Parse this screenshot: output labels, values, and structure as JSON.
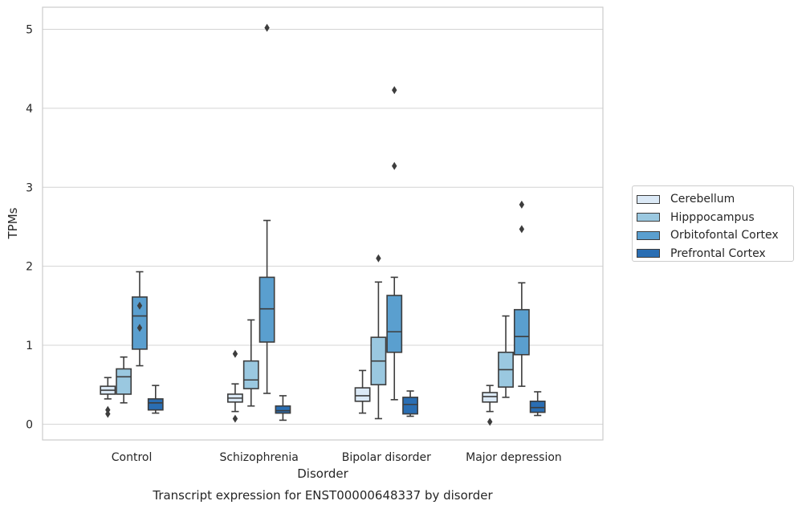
{
  "chart_data": {
    "type": "box",
    "title": "Transcript expression for ENST00000648337 by disorder",
    "xlabel": "Disorder",
    "ylabel": "TPMs",
    "ylim": [
      -0.2,
      5.28
    ],
    "yticks": [
      "0",
      "1",
      "2",
      "3",
      "4",
      "5"
    ],
    "categories": [
      "Control",
      "Schizophrenia",
      "Bipolar disorder",
      "Major depression"
    ],
    "grid": true,
    "legend_position": "right",
    "series": [
      {
        "name": "Cerebellum",
        "color": "#dbe9f6",
        "boxes": [
          {
            "whislo": 0.32,
            "q1": 0.38,
            "med": 0.43,
            "q3": 0.48,
            "whishi": 0.59,
            "fliers": [
              0.13,
              0.18
            ]
          },
          {
            "whislo": 0.16,
            "q1": 0.28,
            "med": 0.33,
            "q3": 0.38,
            "whishi": 0.51,
            "fliers": [
              0.89,
              0.07
            ]
          },
          {
            "whislo": 0.14,
            "q1": 0.29,
            "med": 0.36,
            "q3": 0.46,
            "whishi": 0.68,
            "fliers": []
          },
          {
            "whislo": 0.16,
            "q1": 0.28,
            "med": 0.35,
            "q3": 0.4,
            "whishi": 0.49,
            "fliers": [
              0.03
            ]
          }
        ]
      },
      {
        "name": "Hipppocampus",
        "color": "#9ac8e0",
        "boxes": [
          {
            "whislo": 0.27,
            "q1": 0.38,
            "med": 0.6,
            "q3": 0.7,
            "whishi": 0.85,
            "fliers": []
          },
          {
            "whislo": 0.23,
            "q1": 0.45,
            "med": 0.56,
            "q3": 0.8,
            "whishi": 1.32,
            "fliers": []
          },
          {
            "whislo": 0.07,
            "q1": 0.5,
            "med": 0.8,
            "q3": 1.1,
            "whishi": 1.8,
            "fliers": [
              2.1
            ]
          },
          {
            "whislo": 0.34,
            "q1": 0.47,
            "med": 0.69,
            "q3": 0.91,
            "whishi": 1.37,
            "fliers": []
          }
        ]
      },
      {
        "name": "Orbitofontal Cortex",
        "color": "#5a9fcf",
        "boxes": [
          {
            "whislo": 0.74,
            "q1": 0.95,
            "med": 1.37,
            "q3": 1.61,
            "whishi": 1.93,
            "fliers": [
              1.5,
              1.22
            ]
          },
          {
            "whislo": 0.39,
            "q1": 1.04,
            "med": 1.46,
            "q3": 1.86,
            "whishi": 2.58,
            "fliers": [
              5.02
            ]
          },
          {
            "whislo": 0.31,
            "q1": 0.91,
            "med": 1.17,
            "q3": 1.63,
            "whishi": 1.86,
            "fliers": [
              4.23,
              3.27
            ]
          },
          {
            "whislo": 0.48,
            "q1": 0.88,
            "med": 1.11,
            "q3": 1.45,
            "whishi": 1.79,
            "fliers": [
              2.78,
              2.47
            ]
          }
        ]
      },
      {
        "name": "Prefrontal Cortex",
        "color": "#2a6eb3",
        "boxes": [
          {
            "whislo": 0.14,
            "q1": 0.18,
            "med": 0.27,
            "q3": 0.32,
            "whishi": 0.49,
            "fliers": []
          },
          {
            "whislo": 0.05,
            "q1": 0.14,
            "med": 0.17,
            "q3": 0.23,
            "whishi": 0.36,
            "fliers": []
          },
          {
            "whislo": 0.1,
            "q1": 0.13,
            "med": 0.25,
            "q3": 0.34,
            "whishi": 0.42,
            "fliers": []
          },
          {
            "whislo": 0.11,
            "q1": 0.15,
            "med": 0.21,
            "q3": 0.29,
            "whishi": 0.41,
            "fliers": []
          }
        ]
      }
    ]
  }
}
